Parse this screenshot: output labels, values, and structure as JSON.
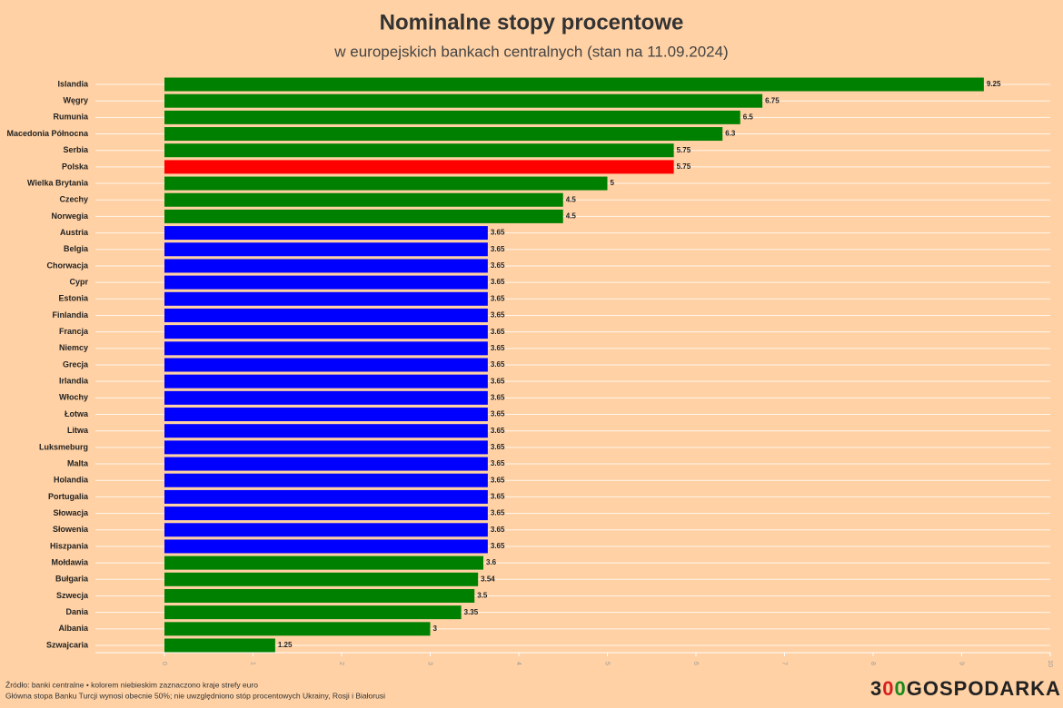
{
  "chart_data": {
    "type": "bar",
    "orientation": "horizontal",
    "title": "Nominalne stopy procentowe",
    "subtitle": "w europejskich bankach centralnych (stan na 11.09.2024)",
    "categories": [
      "Islandia",
      "Węgry",
      "Rumunia",
      "Macedonia Północna",
      "Serbia",
      "Polska",
      "Wielka Brytania",
      "Czechy",
      "Norwegia",
      "Austria",
      "Belgia",
      "Chorwacja",
      "Cypr",
      "Estonia",
      "Finlandia",
      "Francja",
      "Niemcy",
      "Grecja",
      "Irlandia",
      "Włochy",
      "Łotwa",
      "Litwa",
      "Luksmeburg",
      "Malta",
      "Holandia",
      "Portugalia",
      "Słowacja",
      "Słowenia",
      "Hiszpania",
      "Mołdawia",
      "Bułgaria",
      "Szwecja",
      "Dania",
      "Albania",
      "Szwajcaria"
    ],
    "values": [
      9.25,
      6.75,
      6.5,
      6.3,
      5.75,
      5.75,
      5,
      4.5,
      4.5,
      3.65,
      3.65,
      3.65,
      3.65,
      3.65,
      3.65,
      3.65,
      3.65,
      3.65,
      3.65,
      3.65,
      3.65,
      3.65,
      3.65,
      3.65,
      3.65,
      3.65,
      3.65,
      3.65,
      3.65,
      3.6,
      3.54,
      3.5,
      3.35,
      3,
      1.25
    ],
    "colors": [
      "#008000",
      "#008000",
      "#008000",
      "#008000",
      "#008000",
      "#ff0000",
      "#008000",
      "#008000",
      "#008000",
      "#0000ff",
      "#0000ff",
      "#0000ff",
      "#0000ff",
      "#0000ff",
      "#0000ff",
      "#0000ff",
      "#0000ff",
      "#0000ff",
      "#0000ff",
      "#0000ff",
      "#0000ff",
      "#0000ff",
      "#0000ff",
      "#0000ff",
      "#0000ff",
      "#0000ff",
      "#0000ff",
      "#0000ff",
      "#0000ff",
      "#008000",
      "#008000",
      "#008000",
      "#008000",
      "#008000",
      "#008000"
    ],
    "xlim": [
      0,
      10
    ],
    "xticks": [
      0,
      1,
      2,
      3,
      4,
      5,
      6,
      7,
      8,
      9,
      10
    ],
    "source": "Źródło: banki centralne • kolorem niebieskim zaznaczono kraje strefy euro",
    "note": "Główna stopa Banku Turcji wynosi obecnie 50%; nie uwzględniono stóp procentowych Ukrainy, Rosji i Białorusi",
    "logo": [
      {
        "text": "3",
        "color": "#222222"
      },
      {
        "text": "0",
        "color": "#d62020"
      },
      {
        "text": "0",
        "color": "#1a8a1a"
      },
      {
        "text": "GOSPODARKA",
        "color": "#222222"
      }
    ]
  }
}
